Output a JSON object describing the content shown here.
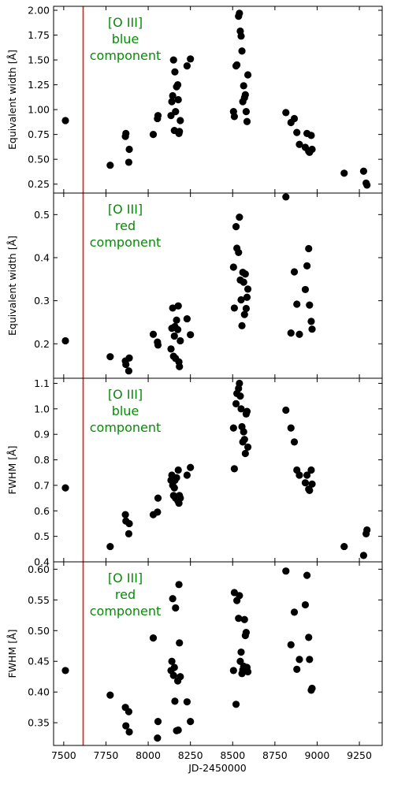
{
  "figure": {
    "xlabel": "JD-2450000",
    "vline_x": 7615,
    "vline_color": "#e41a1c",
    "marker_color": "#000000",
    "annotation_color": "#0a8a0a",
    "xlim": [
      7440,
      9385
    ],
    "xticks": [
      7500,
      7750,
      8000,
      8250,
      8500,
      8750,
      9000,
      9250
    ]
  },
  "chart_data": [
    {
      "type": "scatter",
      "annotation": [
        "[O III]",
        "blue",
        "component"
      ],
      "ylabel": "Equivalent width [Å]",
      "ylim": [
        0.16,
        2.04
      ],
      "yticks": [
        0.25,
        0.5,
        0.75,
        1.0,
        1.25,
        1.5,
        1.75,
        2.0
      ],
      "ytick_labels": [
        "0.25",
        "0.50",
        "0.75",
        "1.00",
        "1.25",
        "1.50",
        "1.75",
        "2.00"
      ],
      "x": [
        7510,
        7775,
        7865,
        7868,
        7885,
        7888,
        8030,
        8055,
        8058,
        8135,
        8140,
        8145,
        8150,
        8155,
        8158,
        8162,
        8168,
        8175,
        8178,
        8182,
        8185,
        8190,
        8230,
        8250,
        8505,
        8510,
        8520,
        8525,
        8535,
        8540,
        8545,
        8550,
        8555,
        8560,
        8565,
        8570,
        8575,
        8580,
        8585,
        8590,
        8815,
        8845,
        8865,
        8880,
        8895,
        8930,
        8940,
        8950,
        8955,
        8965,
        8970,
        9160,
        9275,
        9290,
        9295
      ],
      "y": [
        0.89,
        0.44,
        0.73,
        0.76,
        0.47,
        0.6,
        0.75,
        0.91,
        0.94,
        0.94,
        1.08,
        1.14,
        1.5,
        0.79,
        1.38,
        0.98,
        1.23,
        1.25,
        1.1,
        0.76,
        0.78,
        0.89,
        1.44,
        1.51,
        0.98,
        0.93,
        1.44,
        1.45,
        1.94,
        1.97,
        1.79,
        1.74,
        1.59,
        1.08,
        1.24,
        1.12,
        1.15,
        0.98,
        0.88,
        1.35,
        0.97,
        0.87,
        0.91,
        0.77,
        0.65,
        0.62,
        0.76,
        0.58,
        0.57,
        0.74,
        0.6,
        0.36,
        0.38,
        0.26,
        0.24
      ]
    },
    {
      "type": "scatter",
      "annotation": [
        "[O III]",
        "red",
        "component"
      ],
      "ylabel": "Equivalent width [Å]",
      "ylim": [
        0.12,
        0.55
      ],
      "yticks": [
        0.2,
        0.3,
        0.4,
        0.5
      ],
      "ytick_labels": [
        "0.2",
        "0.3",
        "0.4",
        "0.5"
      ],
      "x": [
        7510,
        7775,
        7865,
        7868,
        7885,
        7888,
        8030,
        8055,
        8058,
        8135,
        8140,
        8145,
        8150,
        8155,
        8158,
        8162,
        8168,
        8175,
        8178,
        8182,
        8185,
        8190,
        8230,
        8250,
        8505,
        8510,
        8520,
        8525,
        8535,
        8540,
        8545,
        8550,
        8555,
        8560,
        8565,
        8570,
        8575,
        8580,
        8585,
        8590,
        8815,
        8845,
        8865,
        8880,
        8895,
        8930,
        8940,
        8950,
        8955,
        8965,
        8970
      ],
      "y": [
        0.207,
        0.17,
        0.16,
        0.152,
        0.137,
        0.167,
        0.222,
        0.204,
        0.197,
        0.188,
        0.236,
        0.283,
        0.171,
        0.218,
        0.24,
        0.166,
        0.255,
        0.233,
        0.288,
        0.158,
        0.147,
        0.207,
        0.258,
        0.221,
        0.378,
        0.283,
        0.472,
        0.422,
        0.412,
        0.494,
        0.348,
        0.302,
        0.242,
        0.366,
        0.343,
        0.268,
        0.362,
        0.282,
        0.308,
        0.327,
        0.541,
        0.225,
        0.367,
        0.292,
        0.222,
        0.326,
        0.381,
        0.421,
        0.29,
        0.252,
        0.234
      ]
    },
    {
      "type": "scatter",
      "annotation": [
        "[O III]",
        "blue",
        "component"
      ],
      "ylabel": "FWHM [Å]",
      "ylim": [
        0.4,
        1.12
      ],
      "yticks": [
        0.4,
        0.5,
        0.6,
        0.7,
        0.8,
        0.9,
        1.0,
        1.1
      ],
      "ytick_labels": [
        "0.4",
        "0.5",
        "0.6",
        "0.7",
        "0.8",
        "0.9",
        "1.0",
        "1.1"
      ],
      "x": [
        7510,
        7775,
        7865,
        7868,
        7885,
        7888,
        8030,
        8055,
        8058,
        8135,
        8140,
        8145,
        8150,
        8155,
        8158,
        8162,
        8168,
        8175,
        8178,
        8182,
        8185,
        8190,
        8230,
        8250,
        8505,
        8510,
        8520,
        8525,
        8535,
        8540,
        8545,
        8550,
        8555,
        8560,
        8565,
        8570,
        8575,
        8580,
        8585,
        8590,
        8815,
        8845,
        8865,
        8880,
        8895,
        8930,
        8940,
        8950,
        8955,
        8965,
        8970,
        9160,
        9275,
        9290,
        9295
      ],
      "y": [
        0.69,
        0.46,
        0.585,
        0.56,
        0.51,
        0.55,
        0.585,
        0.595,
        0.65,
        0.72,
        0.74,
        0.7,
        0.66,
        0.69,
        0.72,
        0.65,
        0.73,
        0.64,
        0.76,
        0.63,
        0.66,
        0.65,
        0.74,
        0.77,
        0.925,
        0.765,
        1.02,
        1.06,
        1.08,
        1.1,
        1.05,
        1.0,
        0.93,
        0.87,
        0.91,
        0.88,
        0.825,
        0.98,
        0.99,
        0.85,
        0.995,
        0.925,
        0.87,
        0.76,
        0.74,
        0.71,
        0.74,
        0.685,
        0.68,
        0.76,
        0.705,
        0.46,
        0.425,
        0.51,
        0.525
      ]
    },
    {
      "type": "scatter",
      "annotation": [
        "[O III]",
        "red",
        "component"
      ],
      "ylabel": "FWHM [Å]",
      "ylim": [
        0.313,
        0.612
      ],
      "yticks": [
        0.35,
        0.4,
        0.45,
        0.5,
        0.55,
        0.6
      ],
      "ytick_labels": [
        "0.35",
        "0.40",
        "0.45",
        "0.50",
        "0.55",
        "0.60"
      ],
      "x": [
        7510,
        7775,
        7865,
        7868,
        7885,
        7888,
        8030,
        8055,
        8058,
        8135,
        8140,
        8145,
        8150,
        8155,
        8158,
        8162,
        8168,
        8175,
        8178,
        8182,
        8185,
        8190,
        8230,
        8250,
        8505,
        8510,
        8520,
        8525,
        8535,
        8540,
        8545,
        8550,
        8555,
        8560,
        8565,
        8570,
        8575,
        8580,
        8585,
        8590,
        8815,
        8845,
        8865,
        8880,
        8895,
        8930,
        8940,
        8950,
        8955,
        8965,
        8970
      ],
      "y": [
        0.435,
        0.395,
        0.375,
        0.345,
        0.368,
        0.335,
        0.488,
        0.325,
        0.352,
        0.435,
        0.45,
        0.552,
        0.427,
        0.44,
        0.385,
        0.537,
        0.337,
        0.418,
        0.338,
        0.575,
        0.48,
        0.425,
        0.384,
        0.352,
        0.435,
        0.562,
        0.38,
        0.549,
        0.52,
        0.557,
        0.45,
        0.465,
        0.43,
        0.436,
        0.442,
        0.518,
        0.492,
        0.497,
        0.44,
        0.433,
        0.597,
        0.477,
        0.53,
        0.437,
        0.453,
        0.542,
        0.59,
        0.489,
        0.453,
        0.403,
        0.406
      ]
    }
  ]
}
